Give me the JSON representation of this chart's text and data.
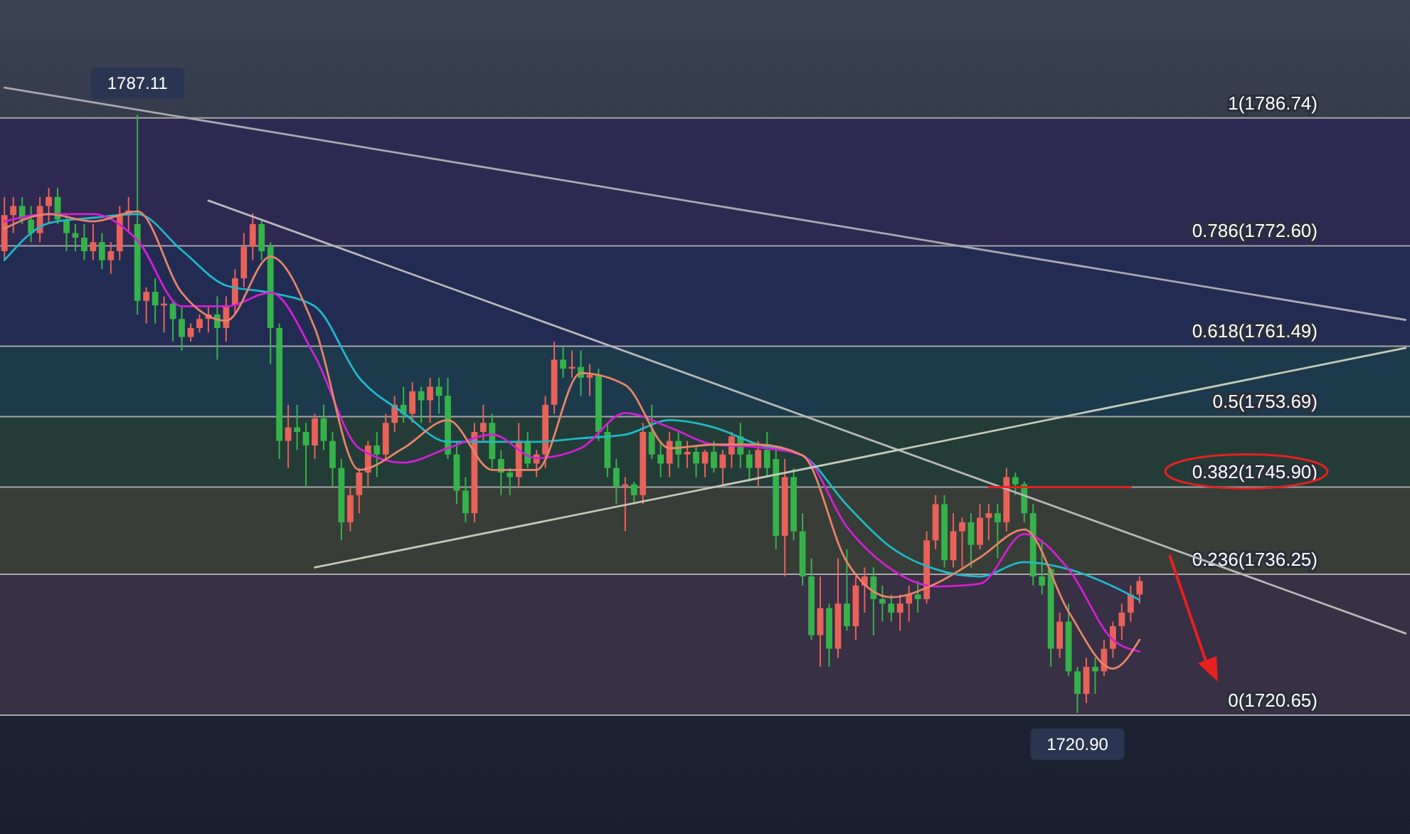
{
  "chart_data": {
    "type": "candlestick",
    "ylim": [
      1707.5,
      1799.8
    ],
    "categories": [
      null,
      null,
      null,
      null,
      null,
      null,
      null,
      null,
      null,
      null,
      null,
      null,
      null,
      null,
      null,
      null,
      null,
      null,
      null,
      null,
      null,
      null,
      null,
      null,
      null,
      null,
      null,
      null,
      null,
      null,
      null,
      null,
      null,
      null,
      null,
      null,
      null,
      null,
      null,
      null,
      null,
      null,
      null,
      null,
      null,
      null,
      null,
      null,
      null,
      null,
      null,
      null,
      null,
      null,
      null,
      null,
      null,
      null,
      null,
      null,
      null,
      null,
      null,
      null,
      null,
      null,
      null,
      null,
      null,
      null,
      null,
      null,
      null,
      null,
      null,
      null,
      null,
      null,
      null,
      null,
      null,
      null,
      null,
      null,
      null,
      null,
      null,
      null,
      null,
      null,
      null,
      null,
      null,
      null,
      null,
      null,
      null,
      null,
      null,
      null,
      null,
      null,
      null,
      null,
      null,
      null,
      null,
      null,
      null,
      null,
      null,
      null,
      null,
      null,
      null,
      null,
      null,
      null,
      null,
      null,
      null,
      null,
      null,
      null,
      null,
      null,
      null,
      null,
      null,
      null,
      null,
      null,
      null,
      null,
      null,
      null,
      null,
      null,
      null,
      null,
      null,
      null,
      null,
      null,
      null,
      null,
      null,
      null,
      null,
      null,
      null,
      null,
      null,
      null,
      null,
      null,
      null,
      null,
      null
    ],
    "ohlc": [
      [
        1772,
        1778,
        1771,
        1776
      ],
      [
        1776,
        1778,
        1774,
        1777
      ],
      [
        1777,
        1778,
        1775,
        1775.5
      ],
      [
        1775.5,
        1777,
        1773,
        1774
      ],
      [
        1774,
        1778,
        1773,
        1777
      ],
      [
        1777,
        1779,
        1775,
        1778
      ],
      [
        1778,
        1779,
        1775,
        1775.5
      ],
      [
        1775.5,
        1776,
        1772,
        1774
      ],
      [
        1774,
        1775,
        1772,
        1773.5
      ],
      [
        1773.5,
        1775,
        1771,
        1772
      ],
      [
        1772,
        1775,
        1771,
        1773
      ],
      [
        1773,
        1774,
        1770,
        1771
      ],
      [
        1771,
        1773,
        1769.5,
        1772
      ],
      [
        1772,
        1777,
        1771,
        1776
      ],
      [
        1776,
        1778,
        1774,
        1776.5
      ],
      [
        1775,
        1787.11,
        1765,
        1766.5
      ],
      [
        1766.5,
        1768,
        1764,
        1767.5
      ],
      [
        1767.5,
        1769,
        1764,
        1766
      ],
      [
        1766,
        1767,
        1763,
        1766.2
      ],
      [
        1766.2,
        1766.5,
        1762,
        1764.5
      ],
      [
        1764.5,
        1766,
        1761,
        1762.5
      ],
      [
        1762.5,
        1764,
        1762,
        1763.5
      ],
      [
        1763.5,
        1765,
        1763,
        1764.5
      ],
      [
        1764.5,
        1766,
        1763,
        1765
      ],
      [
        1765,
        1767,
        1760,
        1763.5
      ],
      [
        1763.5,
        1767,
        1762,
        1766
      ],
      [
        1766,
        1770,
        1765,
        1769
      ],
      [
        1769,
        1774,
        1768,
        1772.5
      ],
      [
        1772.5,
        1776.2,
        1771,
        1775
      ],
      [
        1775,
        1775.5,
        1771,
        1772
      ],
      [
        1772.5,
        1773,
        1759.5,
        1763.5
      ],
      [
        1763.5,
        1764,
        1749,
        1751
      ],
      [
        1751,
        1755,
        1748,
        1752.5
      ],
      [
        1752.5,
        1755,
        1750,
        1752
      ],
      [
        1752,
        1753,
        1746,
        1750.5
      ],
      [
        1750.5,
        1754,
        1749,
        1753.5
      ],
      [
        1753.5,
        1755,
        1750,
        1751
      ],
      [
        1751,
        1752,
        1746,
        1748
      ],
      [
        1748,
        1749,
        1740,
        1742
      ],
      [
        1742,
        1746,
        1741,
        1745
      ],
      [
        1745,
        1748,
        1743,
        1747.5
      ],
      [
        1747.5,
        1751,
        1746,
        1750.5
      ],
      [
        1750.5,
        1752,
        1747,
        1749.5
      ],
      [
        1749.5,
        1754,
        1749,
        1753
      ],
      [
        1753,
        1756,
        1752,
        1755
      ],
      [
        1755,
        1757,
        1753,
        1754
      ],
      [
        1754,
        1757.5,
        1753,
        1756.5
      ],
      [
        1756.5,
        1757,
        1753,
        1755.5
      ],
      [
        1755.5,
        1758,
        1753,
        1757
      ],
      [
        1757,
        1758,
        1754,
        1756
      ],
      [
        1756,
        1758,
        1749,
        1749.5
      ],
      [
        1749.5,
        1751,
        1744,
        1745.5
      ],
      [
        1745.5,
        1747,
        1742,
        1743
      ],
      [
        1743,
        1753,
        1742,
        1752
      ],
      [
        1752,
        1755,
        1751,
        1753
      ],
      [
        1753,
        1754,
        1748,
        1749
      ],
      [
        1749,
        1750,
        1745,
        1747.5
      ],
      [
        1747.5,
        1748,
        1745,
        1747
      ],
      [
        1747,
        1753,
        1746,
        1751
      ],
      [
        1751,
        1752,
        1748,
        1748.5
      ],
      [
        1748.5,
        1750,
        1747,
        1749.5
      ],
      [
        1749.5,
        1756,
        1748,
        1755
      ],
      [
        1755,
        1762,
        1754,
        1760
      ],
      [
        1760,
        1761.5,
        1758,
        1759
      ],
      [
        1759,
        1761,
        1758,
        1759.2
      ],
      [
        1759.2,
        1761,
        1756,
        1758
      ],
      [
        1758,
        1759.5,
        1756,
        1758.3
      ],
      [
        1758.3,
        1759,
        1751,
        1752
      ],
      [
        1752,
        1753,
        1747,
        1748
      ],
      [
        1748,
        1749,
        1744,
        1746
      ],
      [
        1746,
        1747,
        1741,
        1746.2
      ],
      [
        1746.2,
        1746.5,
        1744,
        1745
      ],
      [
        1745,
        1753,
        1744,
        1752
      ],
      [
        1752,
        1755,
        1749,
        1749.5
      ],
      [
        1749.5,
        1751,
        1747,
        1748.5
      ],
      [
        1748.5,
        1752,
        1747,
        1751
      ],
      [
        1751,
        1752,
        1748,
        1749.5
      ],
      [
        1749.5,
        1751,
        1748,
        1749.8
      ],
      [
        1749.8,
        1750.5,
        1747,
        1748.5
      ],
      [
        1748.5,
        1750,
        1747,
        1749.8
      ],
      [
        1749.8,
        1751,
        1747.5,
        1748
      ],
      [
        1748,
        1750,
        1746,
        1749.5
      ],
      [
        1749.5,
        1752,
        1748,
        1751.5
      ],
      [
        1751.5,
        1753,
        1748,
        1749.5
      ],
      [
        1749.5,
        1750,
        1746.5,
        1748
      ],
      [
        1748,
        1751,
        1746,
        1750
      ],
      [
        1750,
        1752,
        1747,
        1748
      ],
      [
        1749,
        1750,
        1739,
        1740.5
      ],
      [
        1740.5,
        1749,
        1736,
        1747
      ],
      [
        1747,
        1748,
        1740,
        1741
      ],
      [
        1741,
        1743,
        1735,
        1736
      ],
      [
        1736,
        1738,
        1729,
        1729.5
      ],
      [
        1729.5,
        1736,
        1726,
        1732.5
      ],
      [
        1732.5,
        1733,
        1726,
        1728
      ],
      [
        1728,
        1738,
        1727,
        1733
      ],
      [
        1733,
        1739,
        1730,
        1730.5
      ],
      [
        1730.5,
        1736,
        1729,
        1735
      ],
      [
        1735,
        1737,
        1732,
        1736
      ],
      [
        1736,
        1737,
        1729.5,
        1733.5
      ],
      [
        1733.5,
        1735,
        1731,
        1733
      ],
      [
        1733,
        1734,
        1731,
        1732
      ],
      [
        1732,
        1734,
        1730,
        1733
      ],
      [
        1733,
        1735,
        1731,
        1734
      ],
      [
        1734,
        1735.5,
        1732,
        1733.5
      ],
      [
        1733.5,
        1741,
        1733,
        1740
      ],
      [
        1740,
        1745,
        1739,
        1744
      ],
      [
        1744,
        1745,
        1737,
        1737.8
      ],
      [
        1737.8,
        1743,
        1737,
        1741
      ],
      [
        1741,
        1742.5,
        1737,
        1742
      ],
      [
        1742,
        1743,
        1737,
        1739.5
      ],
      [
        1739.5,
        1744,
        1739,
        1742.5
      ],
      [
        1742.5,
        1744,
        1740,
        1743
      ],
      [
        1743,
        1744,
        1738,
        1742
      ],
      [
        1742,
        1748,
        1741,
        1747
      ],
      [
        1747,
        1747.5,
        1745,
        1746.2
      ],
      [
        1746.2,
        1746.5,
        1742,
        1743
      ],
      [
        1743,
        1744,
        1735,
        1736
      ],
      [
        1736,
        1740,
        1734,
        1735
      ],
      [
        1736.8,
        1737,
        1726,
        1728
      ],
      [
        1728,
        1732,
        1727,
        1731
      ],
      [
        1731,
        1733,
        1725,
        1725.5
      ],
      [
        1725.5,
        1726,
        1720.9,
        1723
      ],
      [
        1723,
        1727,
        1722,
        1726
      ],
      [
        1726,
        1727,
        1723,
        1725.5
      ],
      [
        1725.5,
        1729,
        1725,
        1728
      ],
      [
        1728,
        1731,
        1727,
        1730.5
      ],
      [
        1730.5,
        1733,
        1729,
        1732
      ],
      [
        1732,
        1735,
        1731,
        1734
      ],
      [
        1734,
        1736,
        1733,
        1735.5
      ],
      null,
      null,
      null,
      null,
      null,
      null,
      null,
      null,
      null,
      null,
      null,
      null,
      null,
      null,
      null,
      null,
      null,
      null,
      null,
      null,
      null,
      null,
      null,
      null,
      null,
      null,
      null,
      null,
      null,
      null
    ],
    "series": [
      {
        "type": "line",
        "color": "#1fb8c9",
        "values": [
          1771.0,
          null,
          null,
          null,
          null,
          1775.1,
          null,
          null,
          null,
          null,
          1775.7,
          null,
          null,
          null,
          null,
          1776.1,
          null,
          null,
          null,
          null,
          1772.1,
          null,
          null,
          null,
          null,
          1768.2,
          null,
          null,
          null,
          null,
          1767.4,
          null,
          null,
          null,
          null,
          1765.9,
          null,
          null,
          null,
          null,
          1758.0,
          null,
          null,
          null,
          null,
          1754.1,
          null,
          null,
          null,
          null,
          1750.9,
          null,
          null,
          null,
          null,
          1750.9,
          null,
          null,
          null,
          null,
          1750.9,
          null,
          null,
          null,
          null,
          1751.3,
          null,
          null,
          null,
          null,
          1751.7,
          null,
          null,
          null,
          null,
          1753.3,
          null,
          null,
          null,
          null,
          1752.5,
          null,
          null,
          null,
          null,
          1750.6,
          null,
          null,
          null,
          null,
          1749.4,
          null,
          null,
          null,
          null,
          1743.9,
          null,
          null,
          null,
          null,
          1739.2,
          null,
          null,
          null,
          null,
          1736.8,
          null,
          null,
          null,
          null,
          1736.0,
          null,
          null,
          null,
          null,
          1737.6,
          null,
          null,
          null,
          null,
          1736.8,
          null,
          null,
          null,
          null,
          1734.9,
          null,
          null,
          1733.4,
          null,
          null,
          null,
          null,
          null,
          null,
          null,
          null,
          null,
          null,
          null,
          null,
          null,
          null,
          null,
          null,
          null,
          null,
          null,
          null,
          null,
          null,
          null,
          null,
          null,
          null,
          null,
          null,
          null,
          null
        ]
      },
      {
        "type": "line",
        "color": "#d41fd4",
        "values": [
          1775.3,
          null,
          null,
          null,
          null,
          1776.1,
          null,
          null,
          null,
          null,
          1776.1,
          null,
          null,
          null,
          null,
          1773.2,
          null,
          null,
          null,
          null,
          1765.9,
          null,
          null,
          null,
          null,
          1765.9,
          null,
          null,
          null,
          null,
          1767.4,
          null,
          null,
          null,
          null,
          1760.4,
          null,
          null,
          null,
          null,
          1750.2,
          null,
          null,
          null,
          null,
          1748.6,
          null,
          null,
          null,
          null,
          1750.2,
          null,
          null,
          null,
          null,
          1751.7,
          null,
          null,
          null,
          null,
          1749.1,
          null,
          null,
          null,
          null,
          1750.2,
          null,
          null,
          null,
          null,
          1754.1,
          null,
          null,
          null,
          null,
          1752.5,
          null,
          null,
          null,
          null,
          1750.6,
          null,
          null,
          null,
          null,
          1750.3,
          null,
          null,
          null,
          null,
          1749.4,
          null,
          null,
          null,
          null,
          1741.5,
          null,
          null,
          null,
          null,
          1736.8,
          null,
          null,
          null,
          null,
          1734.9,
          null,
          null,
          null,
          null,
          1735.2,
          null,
          null,
          null,
          null,
          1740.7,
          null,
          null,
          null,
          null,
          1736.8,
          null,
          null,
          null,
          null,
          1729.0,
          null,
          null,
          1727.7,
          null,
          null,
          null,
          null,
          null,
          null,
          null,
          null,
          null,
          null,
          null,
          null,
          null,
          null,
          null,
          null,
          null,
          null,
          null,
          null,
          null,
          null,
          null,
          null,
          null,
          null,
          null,
          null,
          null,
          null
        ]
      },
      {
        "type": "line",
        "color": "#e8846a",
        "values": [
          1774.5,
          null,
          null,
          null,
          null,
          1776.1,
          null,
          null,
          null,
          null,
          1775.3,
          null,
          null,
          null,
          null,
          1776.4,
          null,
          null,
          null,
          null,
          1767.4,
          null,
          null,
          null,
          null,
          1764.3,
          null,
          null,
          null,
          null,
          1771.4,
          null,
          null,
          null,
          null,
          1763.5,
          null,
          null,
          null,
          null,
          1747.8,
          null,
          null,
          null,
          null,
          1750.2,
          null,
          null,
          null,
          null,
          1753.3,
          null,
          null,
          null,
          null,
          1747.8,
          null,
          null,
          null,
          null,
          1747.8,
          null,
          null,
          null,
          null,
          1758.5,
          null,
          null,
          null,
          null,
          1757.2,
          null,
          null,
          null,
          null,
          1750.2,
          null,
          null,
          null,
          null,
          1750.6,
          null,
          null,
          null,
          null,
          1750.6,
          null,
          null,
          null,
          null,
          1749.4,
          null,
          null,
          null,
          null,
          1737.6,
          null,
          null,
          null,
          null,
          1733.7,
          null,
          null,
          null,
          null,
          1735.2,
          null,
          null,
          null,
          null,
          1738.1,
          null,
          null,
          null,
          null,
          1741.2,
          null,
          null,
          null,
          null,
          1732.1,
          null,
          null,
          null,
          null,
          1725.8,
          null,
          null,
          1729.0,
          null,
          null,
          null,
          null,
          null,
          null,
          null,
          null,
          null,
          null,
          null,
          null,
          null,
          null,
          null,
          null,
          null,
          null,
          null,
          null,
          null,
          null,
          null,
          null,
          null,
          null,
          null,
          null,
          null,
          null
        ]
      },
      {
        "type": "line",
        "color": "#a8a8b0",
        "values": [
          1790.1,
          null,
          null,
          null,
          null,
          null,
          null,
          null,
          null,
          null,
          null,
          null,
          null,
          null,
          null,
          null,
          null,
          null,
          null,
          null,
          null,
          null,
          null,
          null,
          null,
          null,
          null,
          null,
          null,
          null,
          null,
          null,
          null,
          null,
          null,
          null,
          null,
          null,
          null,
          null,
          null,
          null,
          null,
          null,
          null,
          null,
          null,
          null,
          null,
          null,
          null,
          null,
          null,
          null,
          null,
          null,
          null,
          null,
          null,
          null,
          null,
          null,
          null,
          null,
          null,
          null,
          null,
          null,
          null,
          null,
          null,
          null,
          null,
          null,
          null,
          null,
          null,
          null,
          null,
          null,
          null,
          null,
          null,
          null,
          null,
          null,
          null,
          null,
          null,
          null,
          null,
          null,
          null,
          null,
          null,
          null,
          null,
          null,
          null,
          null,
          null,
          null,
          null,
          null,
          null,
          null,
          null,
          null,
          null,
          null,
          null,
          null,
          null,
          null,
          null,
          null,
          null,
          null,
          null,
          null,
          null,
          null,
          null,
          null,
          null,
          null,
          null,
          null,
          null,
          null,
          null,
          null,
          null,
          null,
          null,
          null,
          null,
          null,
          null,
          null,
          null,
          null,
          null,
          null,
          null,
          null,
          null,
          null,
          null,
          null,
          null,
          null,
          null,
          null,
          null,
          null,
          null,
          null,
          1764.4
        ]
      },
      {
        "type": "line",
        "color": "#b8b8b8",
        "values": [
          null,
          null,
          null,
          null,
          null,
          null,
          null,
          null,
          null,
          null,
          null,
          null,
          null,
          null,
          null,
          null,
          null,
          null,
          null,
          null,
          null,
          null,
          null,
          1777.6,
          null,
          null,
          null,
          null,
          null,
          null,
          null,
          null,
          null,
          null,
          null,
          null,
          null,
          null,
          null,
          null,
          null,
          null,
          null,
          null,
          null,
          null,
          null,
          null,
          null,
          null,
          null,
          null,
          null,
          null,
          null,
          null,
          null,
          null,
          null,
          null,
          null,
          null,
          null,
          null,
          null,
          null,
          null,
          null,
          null,
          null,
          null,
          null,
          null,
          null,
          null,
          null,
          null,
          null,
          null,
          null,
          null,
          null,
          null,
          null,
          null,
          null,
          null,
          null,
          null,
          null,
          null,
          null,
          null,
          null,
          null,
          null,
          null,
          null,
          null,
          null,
          null,
          null,
          null,
          null,
          null,
          null,
          null,
          null,
          null,
          null,
          null,
          null,
          null,
          null,
          null,
          null,
          null,
          null,
          null,
          null,
          null,
          null,
          null,
          null,
          null,
          null,
          null,
          null,
          null,
          null,
          null,
          null,
          null,
          null,
          null,
          null,
          null,
          null,
          null,
          null,
          null,
          null,
          null,
          null,
          null,
          null,
          null,
          null,
          null,
          null,
          null,
          null,
          null,
          null,
          null,
          null,
          null,
          null,
          1729.7
        ]
      },
      {
        "type": "line",
        "color": "#c4c8b8",
        "values": [
          null,
          null,
          null,
          null,
          null,
          null,
          null,
          null,
          null,
          null,
          null,
          null,
          null,
          null,
          null,
          null,
          null,
          null,
          null,
          null,
          null,
          null,
          null,
          null,
          null,
          null,
          null,
          null,
          null,
          null,
          null,
          null,
          null,
          null,
          null,
          1737.0,
          null,
          null,
          null,
          null,
          null,
          null,
          null,
          null,
          null,
          null,
          null,
          null,
          null,
          null,
          null,
          null,
          null,
          null,
          null,
          null,
          null,
          null,
          null,
          null,
          null,
          null,
          null,
          null,
          null,
          null,
          null,
          null,
          null,
          null,
          null,
          null,
          null,
          null,
          null,
          null,
          null,
          null,
          null,
          null,
          null,
          null,
          null,
          null,
          null,
          null,
          null,
          null,
          null,
          null,
          null,
          null,
          null,
          null,
          null,
          null,
          null,
          null,
          null,
          null,
          null,
          null,
          null,
          null,
          null,
          null,
          null,
          null,
          null,
          null,
          null,
          null,
          null,
          null,
          null,
          null,
          null,
          null,
          null,
          null,
          null,
          null,
          null,
          null,
          null,
          null,
          null,
          null,
          null,
          null,
          null,
          null,
          null,
          null,
          null,
          null,
          null,
          null,
          null,
          null,
          null,
          null,
          null,
          null,
          null,
          null,
          null,
          null,
          null,
          null,
          null,
          null,
          null,
          null,
          null,
          null,
          null,
          null,
          1761.3
        ]
      },
      {
        "type": "line",
        "color": "#e81a1a",
        "values": [
          null,
          null,
          null,
          null,
          null,
          null,
          null,
          null,
          null,
          null,
          null,
          null,
          null,
          null,
          null,
          null,
          null,
          null,
          null,
          null,
          null,
          null,
          null,
          null,
          null,
          null,
          null,
          null,
          null,
          null,
          null,
          null,
          null,
          null,
          null,
          null,
          null,
          null,
          null,
          null,
          null,
          null,
          null,
          null,
          null,
          null,
          null,
          null,
          null,
          null,
          null,
          null,
          null,
          null,
          null,
          null,
          null,
          null,
          null,
          null,
          null,
          null,
          null,
          null,
          null,
          null,
          null,
          null,
          null,
          null,
          null,
          null,
          null,
          null,
          null,
          null,
          null,
          null,
          null,
          null,
          null,
          null,
          null,
          null,
          null,
          null,
          null,
          null,
          null,
          null,
          null,
          null,
          null,
          null,
          null,
          null,
          null,
          null,
          null,
          null,
          null,
          null,
          null,
          null,
          null,
          null,
          null,
          null,
          null,
          null,
          null,
          1745.9,
          null,
          null,
          null,
          null,
          null,
          null,
          null,
          null,
          null,
          null,
          null,
          null,
          null,
          null,
          null,
          1745.9,
          null,
          null,
          null,
          null,
          null,
          null,
          null,
          null,
          null,
          null,
          null,
          null,
          null,
          null,
          null,
          null,
          null,
          null,
          null,
          null,
          null,
          null,
          null,
          null,
          null,
          null,
          null,
          null,
          null,
          null,
          null
        ]
      }
    ],
    "ref_lines": [
      {
        "axis": "y",
        "value": 1786.74,
        "label": "1(1786.74)"
      },
      {
        "axis": "y",
        "value": 1772.6,
        "label": "0.786(1772.60)"
      },
      {
        "axis": "y",
        "value": 1761.49,
        "label": "0.618(1761.49)"
      },
      {
        "axis": "y",
        "value": 1753.69,
        "label": "0.5(1753.69)"
      },
      {
        "axis": "y",
        "value": 1745.9,
        "label": "0.382(1745.90)"
      },
      {
        "axis": "y",
        "value": 1736.25,
        "label": "0.236(1736.25)"
      },
      {
        "axis": "y",
        "value": 1720.65,
        "label": "0(1720.65)"
      }
    ],
    "bands": [
      {
        "axis": "y",
        "from": 1772.6,
        "to": 1786.74,
        "color": "#2e2950"
      },
      {
        "axis": "y",
        "from": 1761.49,
        "to": 1772.6,
        "color": "#222c52"
      },
      {
        "axis": "y",
        "from": 1753.69,
        "to": 1761.49,
        "color": "#1c3a4c"
      },
      {
        "axis": "y",
        "from": 1745.9,
        "to": 1753.69,
        "color": "#243c37"
      },
      {
        "axis": "y",
        "from": 1736.25,
        "to": 1745.9,
        "color": "#383d38"
      },
      {
        "axis": "y",
        "from": 1720.65,
        "to": 1736.25,
        "color": "#383044"
      }
    ],
    "annotations": [
      {
        "text": "1787.11",
        "y": 1787.11
      },
      {
        "text": "1720.90",
        "y": 1720.9
      }
    ]
  }
}
